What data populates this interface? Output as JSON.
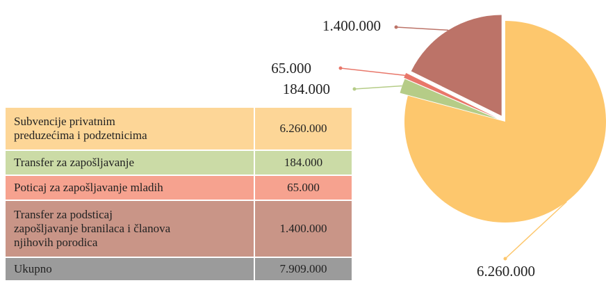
{
  "chart_data": {
    "type": "pie",
    "categories": [
      "Subvencije privatnim\npreduzećima i podzetnicima",
      "Transfer za zapošljavanje",
      "Poticaj za zapošljavanje mladih",
      "Transfer za podsticaj\nzapošljavanje branilaca i članova\nnjihovih porodica"
    ],
    "values": [
      6260000,
      184000,
      65000,
      1400000
    ],
    "value_labels": [
      "6.260.000",
      "184.000",
      "65.000",
      "1.400.000"
    ],
    "colors": [
      "#fdc76d",
      "#b5cc87",
      "#e8776a",
      "#bc7368"
    ]
  },
  "table": {
    "total": {
      "label": "Ukupno",
      "value": "7.909.000"
    }
  }
}
